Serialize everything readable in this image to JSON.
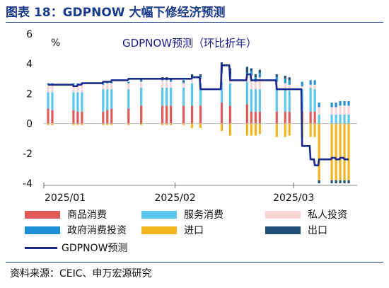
{
  "figure_title": "图表 18：GDPNOW 大幅下修经济预测",
  "source": "资料来源：CEIC、申万宏源研究",
  "chart_data": {
    "type": "bar",
    "title": "GDPNOW预测（环比折年）",
    "ylabel": "%",
    "ylim": [
      -4,
      6
    ],
    "y_ticks": [
      "6",
      "4",
      "2",
      "0",
      "-2",
      "-4"
    ],
    "x_tick_labels": [
      "2025/01",
      "2025/02",
      "2025/03"
    ],
    "stacked": true,
    "legend_position": "bottom",
    "grid": false,
    "x": [
      "01-02",
      "01-03",
      "01-08",
      "01-09",
      "01-10",
      "01-15",
      "01-16",
      "01-17",
      "01-21",
      "01-24",
      "01-29",
      "01-30",
      "01-31",
      "02-03",
      "02-05",
      "02-07",
      "02-12",
      "02-14",
      "02-18",
      "02-19",
      "02-20",
      "02-21",
      "02-25",
      "02-27",
      "02-28",
      "03-03",
      "03-05",
      "03-06",
      "03-07",
      "03-10",
      "03-11",
      "03-12",
      "03-13",
      "03-14"
    ],
    "series": [
      {
        "name": "商品消费",
        "color": "#e05a5a",
        "values": [
          1.0,
          0.9,
          0.9,
          0.8,
          0.8,
          0.8,
          0.9,
          1.0,
          1.0,
          1.2,
          1.2,
          1.2,
          1.2,
          1.2,
          1.2,
          1.2,
          1.4,
          1.2,
          1.3,
          0.8,
          0.8,
          0.8,
          0.8,
          0.8,
          0.8,
          0.8,
          0.8,
          0.8,
          0.0,
          0.0,
          0.0,
          0.0,
          0.0,
          0.0
        ]
      },
      {
        "name": "服务消费",
        "color": "#5bc6f0",
        "values": [
          1.1,
          1.2,
          1.2,
          1.3,
          1.3,
          1.5,
          1.4,
          1.3,
          1.3,
          1.2,
          1.2,
          1.2,
          1.2,
          1.2,
          1.5,
          1.5,
          1.4,
          1.5,
          1.5,
          1.5,
          1.5,
          1.5,
          1.5,
          1.5,
          1.4,
          1.5,
          1.6,
          1.5,
          0.6,
          0.6,
          0.6,
          0.6,
          0.6,
          0.6
        ]
      },
      {
        "name": "私人投资",
        "color": "#f9d6d6",
        "values": [
          0.5,
          0.5,
          0.5,
          0.5,
          0.5,
          0.3,
          0.4,
          0.4,
          0.4,
          0.4,
          0.5,
          0.5,
          0.4,
          0.3,
          0.3,
          0.3,
          0.6,
          0.4,
          0.5,
          0.9,
          0.5,
          0.8,
          0.5,
          0.4,
          0.4,
          0.2,
          0.2,
          0.3,
          0.5,
          0.5,
          0.5,
          0.6,
          0.6,
          0.6
        ]
      },
      {
        "name": "政府消费投资",
        "color": "#1f8fd6",
        "values": [
          0.1,
          0.1,
          0.1,
          0.1,
          0.1,
          0.1,
          0.1,
          0.1,
          0.1,
          0.1,
          0.1,
          0.1,
          0.1,
          0.1,
          0.1,
          0.1,
          0.2,
          0.2,
          0.1,
          0.3,
          0.3,
          0.3,
          0.3,
          0.3,
          0.3,
          0.3,
          0.3,
          0.3,
          0.3,
          0.3,
          0.3,
          0.3,
          0.3,
          0.3
        ]
      },
      {
        "name": "进口",
        "color": "#f2b51d",
        "values": [
          -0.1,
          -0.1,
          -0.1,
          -0.1,
          -0.1,
          -0.1,
          -0.1,
          -0.1,
          -0.1,
          -0.1,
          -0.1,
          -0.1,
          -0.1,
          -0.1,
          -0.3,
          -0.3,
          -0.5,
          -0.8,
          -0.8,
          -0.8,
          -0.8,
          -0.7,
          -0.9,
          -0.9,
          -0.8,
          -0.9,
          -0.9,
          -0.9,
          -3.8,
          -3.8,
          -3.8,
          -3.8,
          -3.8,
          -3.8
        ]
      },
      {
        "name": "出口",
        "color": "#1f4e79",
        "values": [
          0.0,
          0.0,
          0.0,
          0.0,
          0.0,
          0.0,
          0.0,
          0.0,
          0.0,
          0.1,
          0.1,
          0.1,
          0.1,
          0.1,
          0.2,
          0.2,
          0.5,
          0.4,
          0.4,
          0.2,
          0.2,
          0.2,
          0.2,
          0.2,
          0.2,
          0.0,
          0.0,
          0.0,
          -0.2,
          -0.2,
          -0.2,
          -0.2,
          -0.2,
          -0.2
        ]
      }
    ],
    "line": {
      "name": "GDPNOW预测",
      "color": "#1a2a8c",
      "x": [
        "01-02",
        "01-03",
        "01-08",
        "01-09",
        "01-10",
        "01-15",
        "01-16",
        "01-17",
        "01-21",
        "01-24",
        "01-29",
        "01-30",
        "01-31",
        "02-03",
        "02-05",
        "02-07",
        "02-12",
        "02-14",
        "02-18",
        "02-19",
        "02-20",
        "02-21",
        "02-25",
        "02-27",
        "02-28",
        "03-03",
        "03-05",
        "03-06",
        "03-07",
        "03-10",
        "03-11",
        "03-12",
        "03-13",
        "03-14"
      ],
      "values": [
        2.6,
        2.6,
        2.5,
        2.6,
        2.7,
        2.8,
        2.8,
        2.9,
        3.0,
        3.0,
        3.0,
        3.0,
        3.0,
        3.0,
        3.1,
        2.3,
        3.9,
        2.9,
        3.3,
        2.9,
        2.9,
        2.9,
        2.3,
        2.3,
        2.3,
        -1.5,
        -2.4,
        -2.8,
        -2.4,
        -2.3,
        -2.4,
        -2.3,
        -2.4,
        -2.4
      ]
    }
  }
}
